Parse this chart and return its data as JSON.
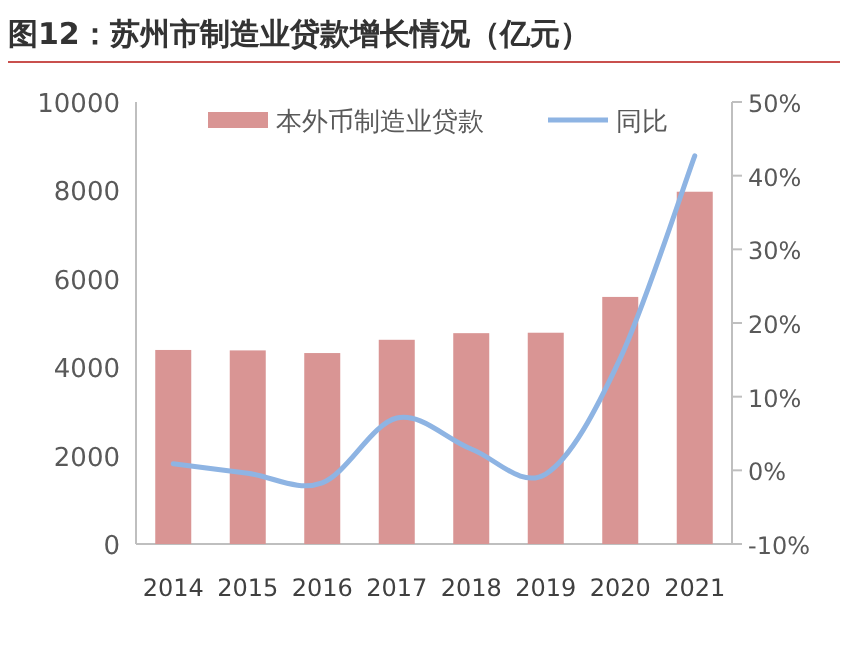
{
  "chart_data": {
    "type": "bar",
    "title": "图12：苏州市制造业贷款增长情况（亿元）",
    "categories": [
      "2014",
      "2015",
      "2016",
      "2017",
      "2018",
      "2019",
      "2020",
      "2021"
    ],
    "series": [
      {
        "name": "本外币制造业贷款",
        "color": "#d99594",
        "values": [
          4390,
          4380,
          4320,
          4620,
          4770,
          4780,
          5590,
          7970
        ]
      },
      {
        "name": "同比",
        "type": "line",
        "axis": "y2",
        "color": "#8eb4e3",
        "values": [
          0.9,
          -0.4,
          -1.7,
          7.1,
          2.9,
          -0.5,
          15.2,
          42.7
        ]
      }
    ],
    "ylim": [
      0,
      10000
    ],
    "yticks": [
      0,
      2000,
      4000,
      6000,
      8000,
      10000
    ],
    "y2lim": [
      -10,
      50
    ],
    "y2ticks": [
      {
        "value": -10,
        "label": "-10%"
      },
      {
        "value": 0,
        "label": "0%"
      },
      {
        "value": 10,
        "label": "10%"
      },
      {
        "value": 20,
        "label": "20%"
      },
      {
        "value": 30,
        "label": "30%"
      },
      {
        "value": 40,
        "label": "40%"
      },
      {
        "value": 50,
        "label": "50%"
      }
    ],
    "legend": "top",
    "grid": false,
    "marker": "none",
    "line_style": "solid"
  }
}
